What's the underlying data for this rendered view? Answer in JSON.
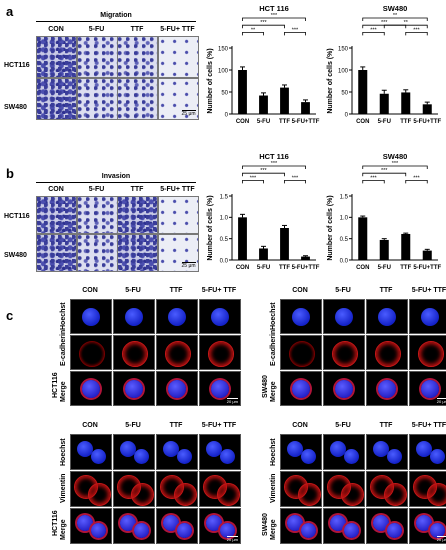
{
  "panels": {
    "a": {
      "label": "a",
      "group_title": "Migration"
    },
    "b": {
      "label": "b",
      "group_title": "Invasion"
    },
    "c": {
      "label": "c"
    }
  },
  "conditions": [
    "CON",
    "5-FU",
    "TTF",
    "5-FU+ TTF"
  ],
  "cell_lines": [
    "HCT116",
    "SW480"
  ],
  "cell_lines_b": [
    "HCT116",
    "SW480"
  ],
  "scale_bar": "25 μm",
  "confocal_scale": "20 μm",
  "confocal_rows_top": [
    "Hoechst",
    "E-cadherin",
    "Merge"
  ],
  "confocal_rows_bottom": [
    "Hoechst",
    "Vimentin",
    "Merge"
  ],
  "chart_data": [
    {
      "type": "bar",
      "title": "HCT 116",
      "ylabel": "Number of cells (%)",
      "categories": [
        "CON",
        "5-FU",
        "TTF",
        "5-FU+TTF"
      ],
      "values": [
        100,
        42,
        60,
        27
      ],
      "errors": [
        7,
        6,
        6,
        5
      ],
      "ylim": [
        0,
        150
      ],
      "yticks": [
        0,
        50,
        100,
        150
      ],
      "sig": [
        "**",
        "***",
        "***",
        "***"
      ]
    },
    {
      "type": "bar",
      "title": "SW480",
      "ylabel": "Number of cells (%)",
      "categories": [
        "CON",
        "5-FU",
        "TTF",
        "5-FU+TTF"
      ],
      "values": [
        100,
        46,
        49,
        22
      ],
      "errors": [
        7,
        8,
        6,
        5
      ],
      "ylim": [
        0,
        150
      ],
      "yticks": [
        0,
        50,
        100,
        150
      ],
      "sig": [
        "***",
        "***",
        "**",
        "***",
        "**"
      ]
    },
    {
      "type": "bar",
      "title": "HCT 116",
      "ylabel": "Number of cells (%)",
      "categories": [
        "CON",
        "5-FU",
        "TTF",
        "5-FU+TTF"
      ],
      "values": [
        1.0,
        0.27,
        0.75,
        0.08
      ],
      "errors": [
        0.07,
        0.05,
        0.06,
        0.02
      ],
      "ylim": [
        0,
        1.5
      ],
      "yticks": [
        0,
        0.5,
        1.0,
        1.5
      ],
      "sig": [
        "***",
        "***",
        "***",
        "***"
      ]
    },
    {
      "type": "bar",
      "title": "SW480",
      "ylabel": "Number of cells (%)",
      "categories": [
        "CON",
        "5-FU",
        "TTF",
        "5-FU+TTF"
      ],
      "values": [
        1.0,
        0.47,
        0.61,
        0.22
      ],
      "errors": [
        0.03,
        0.03,
        0.02,
        0.03
      ],
      "ylim": [
        0,
        1.5
      ],
      "yticks": [
        0,
        0.5,
        1.0,
        1.5
      ],
      "sig": [
        "***",
        "***",
        "***",
        "***"
      ]
    }
  ]
}
